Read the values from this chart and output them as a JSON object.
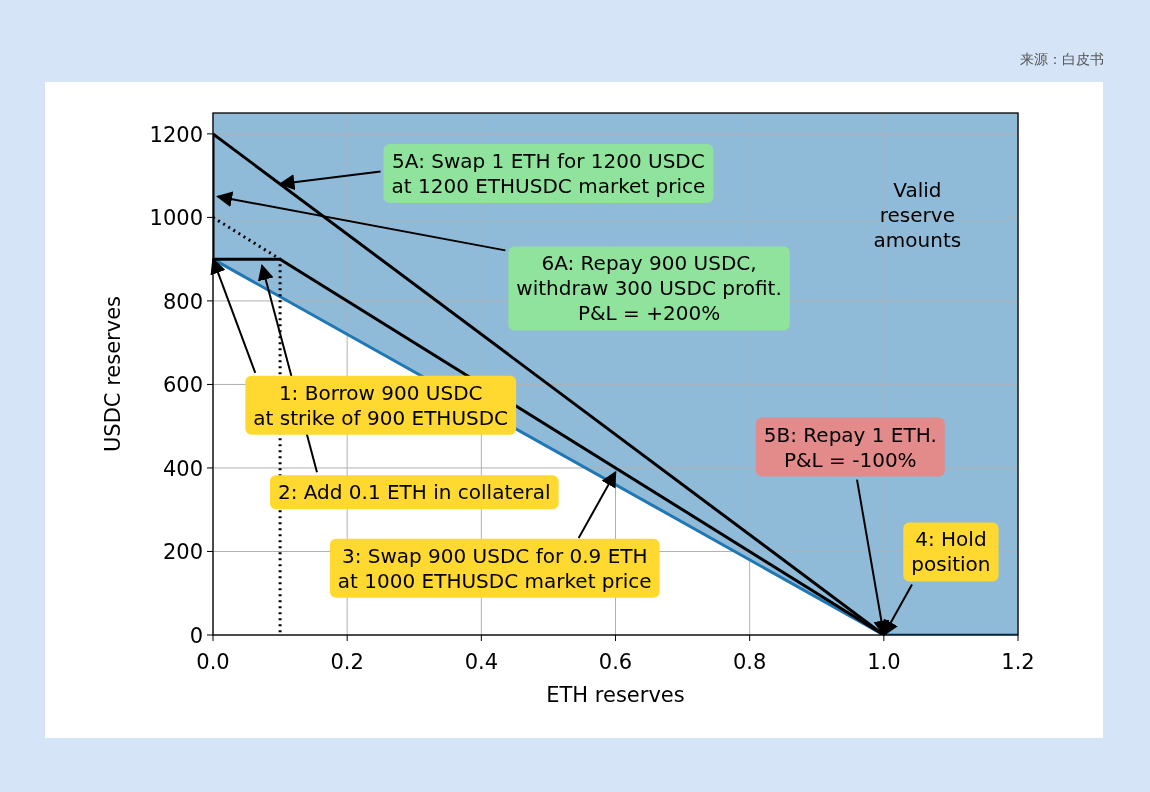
{
  "chart_data": {
    "type": "line",
    "xlabel": "ETH reserves",
    "ylabel": "USDC reserves",
    "xlim": [
      0,
      1.2
    ],
    "ylim": [
      0,
      1250
    ],
    "xticks": [
      {
        "value": 0,
        "label": "0.0"
      },
      {
        "value": 0.2,
        "label": "0.2"
      },
      {
        "value": 0.4,
        "label": "0.4"
      },
      {
        "value": 0.6,
        "label": "0.6"
      },
      {
        "value": 0.8,
        "label": "0.8"
      },
      {
        "value": 1,
        "label": "1.0"
      },
      {
        "value": 1.2,
        "label": "1.2"
      }
    ],
    "yticks": [
      0,
      200,
      400,
      600,
      800,
      1000,
      1200
    ],
    "grid": true,
    "marker": "none",
    "series": [
      {
        "color": "#1f77b4",
        "x": [
          0,
          1,
          1.2
        ],
        "values": [
          900,
          0,
          0
        ],
        "lower": [
          900,
          0,
          0
        ],
        "upper": [
          1250,
          1250,
          1250
        ]
      },
      {
        "color": "#000000",
        "x": [
          0,
          1
        ],
        "values": [
          1200,
          0
        ]
      },
      {
        "color": "#000000",
        "x": [
          0,
          0,
          0.1,
          1
        ],
        "values": [
          1200,
          900,
          900,
          0
        ]
      },
      {
        "color": "#000000",
        "x": [
          0,
          0.1,
          0.1
        ],
        "values": [
          1000,
          900,
          0
        ],
        "line_style": "dotted"
      }
    ],
    "annotations": [
      {
        "text": "1: Borrow 900 USDC\nat strike of 900 ETHUSDC",
        "x": 0,
        "y": 900
      },
      {
        "text": "2: Add 0.1 ETH in collateral",
        "x": 0.073,
        "y": 885
      },
      {
        "text": "3: Swap 900 USDC for 0.9 ETH\nat 1000 ETHUSDC market price",
        "x": 0.6,
        "y": 390
      },
      {
        "text": "4: Hold\nposition",
        "x": 1,
        "y": 0
      },
      {
        "text": "5A: Swap 1 ETH for 1200 USDC\nat 1200 ETHUSDC market price",
        "x": 0.1,
        "y": 1080
      },
      {
        "text": "5B: Repay 1 ETH.\nP&L = -100%",
        "x": 1,
        "y": 0
      },
      {
        "text": "6A: Repay 900 USDC,\nwithdraw 300 USDC profit.\nP&L = +200%",
        "x": 0.007,
        "y": 1050
      },
      "Valid\nreserve\namounts",
      "来源：白皮书"
    ]
  }
}
